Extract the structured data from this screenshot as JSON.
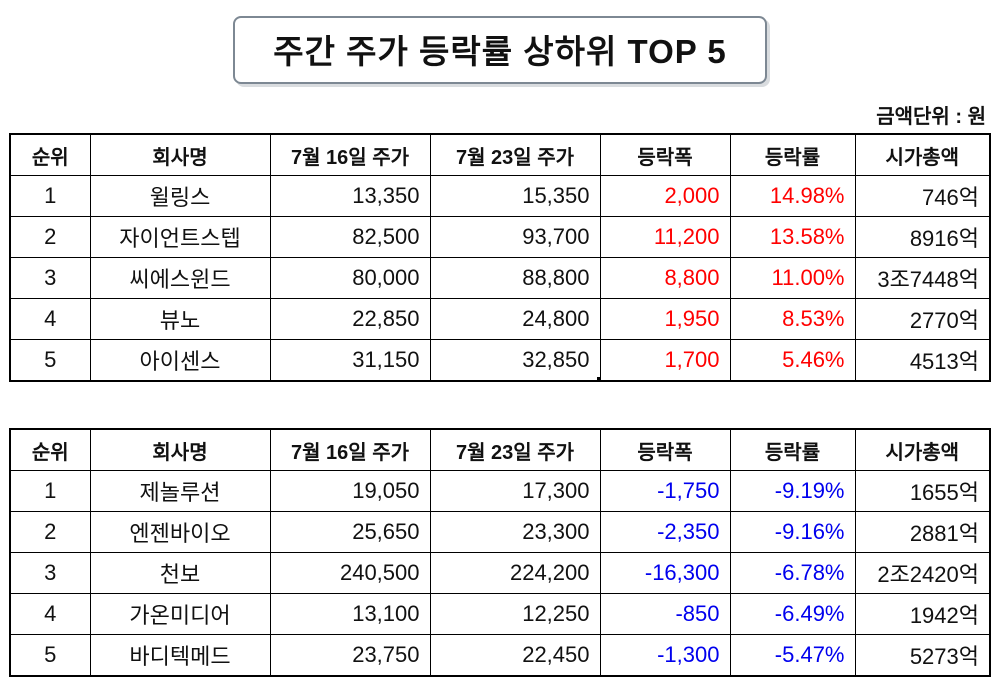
{
  "title": {
    "main": "주간 주가 등락률 상하위",
    "strong": "TOP 5"
  },
  "unit_label": "금액단위 : 원",
  "colors": {
    "gain": "#ff0000",
    "loss": "#0000ee",
    "border": "#000000"
  },
  "selected_cell": {
    "table": 0,
    "row": 4,
    "col": 3
  },
  "chart_data": [
    {
      "type": "table",
      "name": "weekly-top5-gainers",
      "columns": [
        "순위",
        "회사명",
        "7월 16일 주가",
        "7월 23일 주가",
        "등락폭",
        "등락률",
        "시가총액"
      ],
      "value_color": "#ff0000",
      "rows": [
        [
          "1",
          "윌링스",
          "13,350",
          "15,350",
          "2,000",
          "14.98%",
          "746억"
        ],
        [
          "2",
          "자이언트스텝",
          "82,500",
          "93,700",
          "11,200",
          "13.58%",
          "8916억"
        ],
        [
          "3",
          "씨에스윈드",
          "80,000",
          "88,800",
          "8,800",
          "11.00%",
          "3조7448억"
        ],
        [
          "4",
          "뷰노",
          "22,850",
          "24,800",
          "1,950",
          "8.53%",
          "2770억"
        ],
        [
          "5",
          "아이센스",
          "31,150",
          "32,850",
          "1,700",
          "5.46%",
          "4513억"
        ]
      ]
    },
    {
      "type": "table",
      "name": "weekly-top5-losers",
      "columns": [
        "순위",
        "회사명",
        "7월 16일 주가",
        "7월 23일 주가",
        "등락폭",
        "등락률",
        "시가총액"
      ],
      "value_color": "#0000ee",
      "rows": [
        [
          "1",
          "제놀루션",
          "19,050",
          "17,300",
          "-1,750",
          "-9.19%",
          "1655억"
        ],
        [
          "2",
          "엔젠바이오",
          "25,650",
          "23,300",
          "-2,350",
          "-9.16%",
          "2881억"
        ],
        [
          "3",
          "천보",
          "240,500",
          "224,200",
          "-16,300",
          "-6.78%",
          "2조2420억"
        ],
        [
          "4",
          "가온미디어",
          "13,100",
          "12,250",
          "-850",
          "-6.49%",
          "1942억"
        ],
        [
          "5",
          "바디텍메드",
          "23,750",
          "22,450",
          "-1,300",
          "-5.47%",
          "5273억"
        ]
      ]
    }
  ]
}
